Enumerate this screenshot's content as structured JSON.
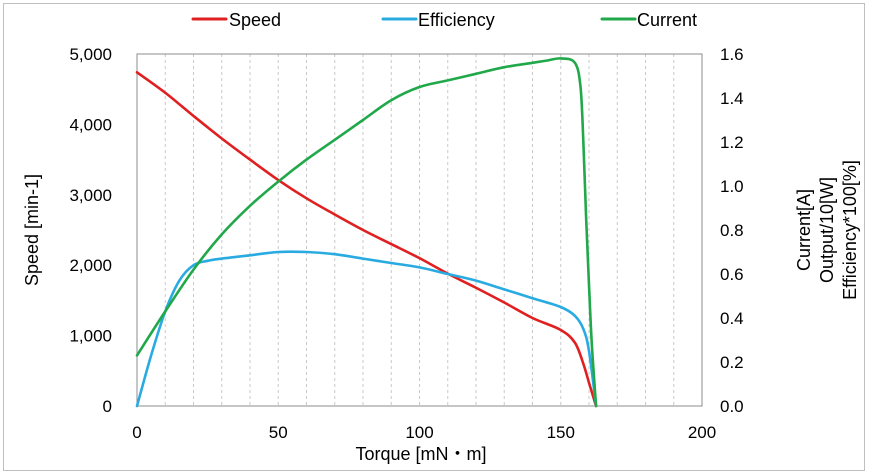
{
  "chart_data": {
    "type": "line",
    "title": "",
    "xlabel": "Torque [mN・m]",
    "ylabel": "Speed [min-1]",
    "y2label_lines": [
      "Current[A]",
      "Output/10[W]",
      "Efficiency*100[%]"
    ],
    "xlim": [
      0,
      200
    ],
    "ylim": [
      0,
      5000
    ],
    "y2lim": [
      0,
      1.6
    ],
    "x_ticks": [
      0,
      50,
      100,
      150,
      200
    ],
    "x_tick_labels": [
      "0",
      "50",
      "100",
      "150",
      "200"
    ],
    "y_ticks": [
      0,
      1000,
      2000,
      3000,
      4000,
      5000
    ],
    "y_tick_labels": [
      "0",
      "1,000",
      "2,000",
      "3,000",
      "4,000",
      "5,000"
    ],
    "y2_ticks": [
      0,
      0.2,
      0.4,
      0.6,
      0.8,
      1.0,
      1.2,
      1.4,
      1.6
    ],
    "y2_tick_labels": [
      "0.0",
      "0.2",
      "0.4",
      "0.6",
      "0.8",
      "1.0",
      "1.2",
      "1.4",
      "1.6"
    ],
    "grid": "vertical dashed every 10 mN·m",
    "legend_position": "top",
    "series": [
      {
        "name": "Speed",
        "axis": "left",
        "color": "#e02020",
        "x": [
          0,
          10,
          20,
          30,
          40,
          50,
          60,
          70,
          80,
          90,
          100,
          110,
          120,
          130,
          140,
          150,
          155,
          158,
          160,
          162.5
        ],
        "y": [
          4740,
          4450,
          4120,
          3800,
          3500,
          3210,
          2950,
          2720,
          2500,
          2300,
          2100,
          1880,
          1680,
          1470,
          1250,
          1080,
          900,
          600,
          330,
          0
        ]
      },
      {
        "name": "Efficiency",
        "axis": "right",
        "color": "#29abe2",
        "x": [
          0,
          5,
          10,
          15,
          20,
          25,
          30,
          40,
          50,
          60,
          70,
          80,
          90,
          100,
          110,
          120,
          130,
          140,
          150,
          155,
          158,
          160,
          162.5
        ],
        "y": [
          0.0,
          0.23,
          0.43,
          0.57,
          0.64,
          0.66,
          0.67,
          0.685,
          0.7,
          0.7,
          0.69,
          0.67,
          0.65,
          0.63,
          0.6,
          0.57,
          0.53,
          0.49,
          0.45,
          0.41,
          0.35,
          0.25,
          0.0
        ]
      },
      {
        "name": "Current",
        "axis": "right",
        "color": "#21a84a",
        "x": [
          0,
          10,
          20,
          30,
          40,
          50,
          60,
          70,
          80,
          90,
          100,
          110,
          120,
          130,
          140,
          145,
          150,
          155,
          157,
          158,
          159,
          160,
          161,
          162.5
        ],
        "y": [
          0.23,
          0.43,
          0.62,
          0.78,
          0.91,
          1.02,
          1.12,
          1.21,
          1.3,
          1.39,
          1.45,
          1.48,
          1.51,
          1.54,
          1.56,
          1.57,
          1.58,
          1.56,
          1.45,
          1.2,
          0.85,
          0.55,
          0.28,
          0.0
        ]
      }
    ]
  }
}
